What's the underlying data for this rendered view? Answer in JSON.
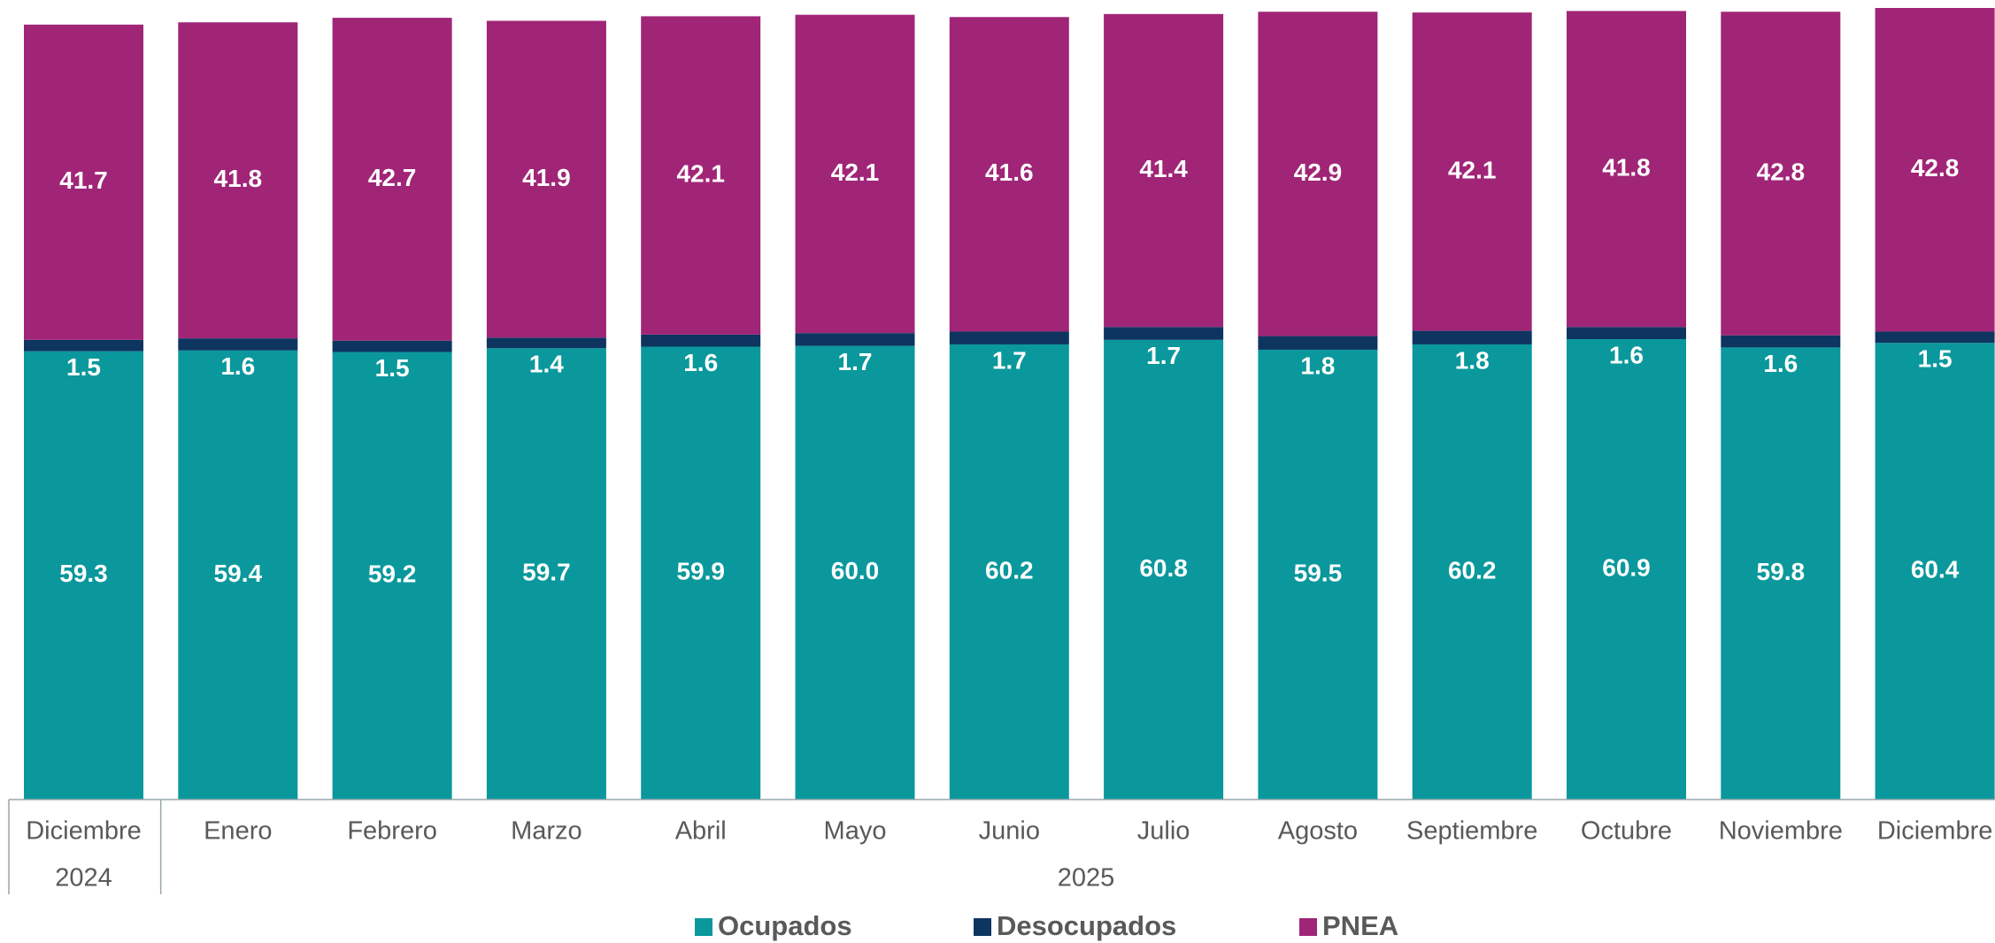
{
  "chart_data": {
    "type": "stacked_bar",
    "categories": [
      "Diciembre",
      "Enero",
      "Febrero",
      "Marzo",
      "Abril",
      "Mayo",
      "Junio",
      "Julio",
      "Agosto",
      "Septiembre",
      "Octubre",
      "Noviembre",
      "Diciembre"
    ],
    "x_groups": [
      {
        "label": "2024",
        "span": 1
      },
      {
        "label": "2025",
        "span": 12
      }
    ],
    "series": [
      {
        "name": "Ocupados",
        "color": "#0a989c",
        "values": [
          59.3,
          59.4,
          59.2,
          59.7,
          59.9,
          60.0,
          60.2,
          60.8,
          59.5,
          60.2,
          60.9,
          59.8,
          60.4
        ],
        "value_labels": [
          "59.3",
          "59.4",
          "59.2",
          "59.7",
          "59.9",
          "60.0",
          "60.2",
          "60.8",
          "59.5",
          "60.2",
          "60.9",
          "59.8",
          "60.4"
        ]
      },
      {
        "name": "Desocupados",
        "color": "#0d3560",
        "values": [
          1.5,
          1.6,
          1.5,
          1.4,
          1.6,
          1.7,
          1.7,
          1.7,
          1.8,
          1.8,
          1.6,
          1.6,
          1.5
        ]
      },
      {
        "name": "PNEA",
        "color": "#a02577",
        "values": [
          41.7,
          41.8,
          42.7,
          41.9,
          42.1,
          42.1,
          41.6,
          41.4,
          42.9,
          42.1,
          41.8,
          42.8,
          42.8
        ]
      }
    ]
  }
}
